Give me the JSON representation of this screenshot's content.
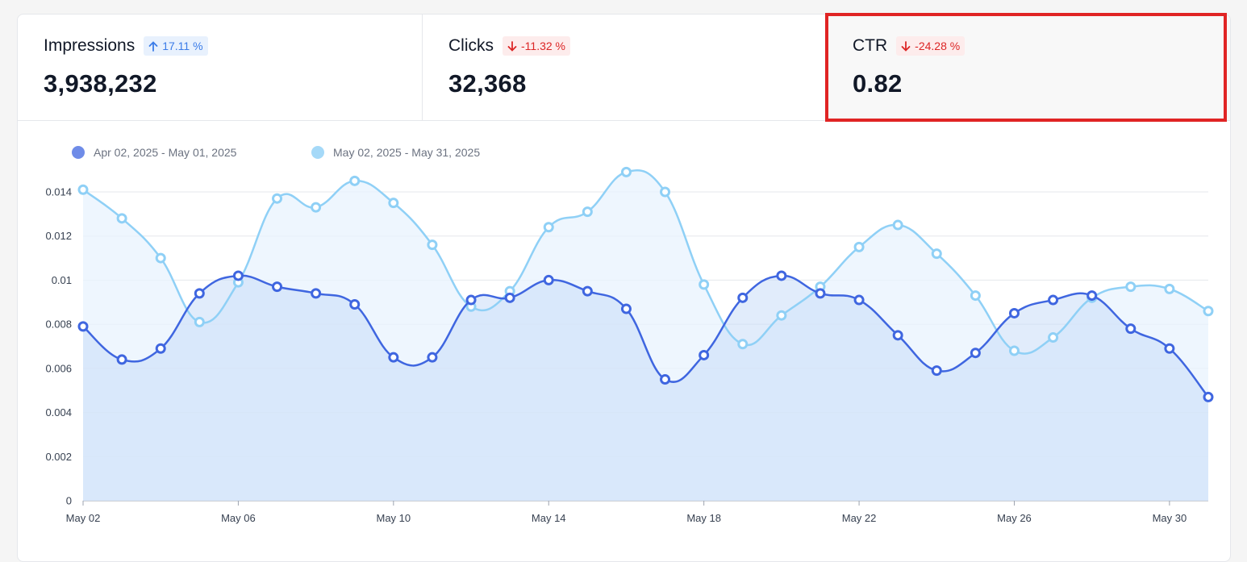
{
  "metrics": [
    {
      "title": "Impressions",
      "change": "17.11 %",
      "direction": "up",
      "value": "3,938,232"
    },
    {
      "title": "Clicks",
      "change": "-11.32 %",
      "direction": "down",
      "value": "32,368"
    },
    {
      "title": "CTR",
      "change": "-24.28 %",
      "direction": "down",
      "value": "0.82"
    }
  ],
  "colors": {
    "previous": "#3f66e0",
    "previous_fill": "#c9dcf8",
    "current": "#8fd0f6",
    "current_fill": "#e8f3fd",
    "grid": "#e5e7eb",
    "highlight": "#e02424"
  },
  "chart_data": {
    "type": "area",
    "legend": [
      "Apr 02, 2025 - May 01, 2025",
      "May 02, 2025 - May 31, 2025"
    ],
    "legend_position": "top-left",
    "grid": true,
    "x": [
      "May 02",
      "May 03",
      "May 04",
      "May 05",
      "May 06",
      "May 07",
      "May 08",
      "May 09",
      "May 10",
      "May 11",
      "May 12",
      "May 13",
      "May 14",
      "May 15",
      "May 16",
      "May 17",
      "May 18",
      "May 19",
      "May 20",
      "May 21",
      "May 22",
      "May 23",
      "May 24",
      "May 25",
      "May 26",
      "May 27",
      "May 28",
      "May 29",
      "May 30",
      "May 31"
    ],
    "x_ticks": [
      "May 02",
      "May 06",
      "May 10",
      "May 14",
      "May 18",
      "May 22",
      "May 26",
      "May 30"
    ],
    "y_ticks": [
      "0",
      "0.002",
      "0.004",
      "0.006",
      "0.008",
      "0.01",
      "0.012",
      "0.014"
    ],
    "ylim": [
      0,
      0.014
    ],
    "series": [
      {
        "name": "Apr 02, 2025 - May 01, 2025",
        "values": [
          0.0079,
          0.0064,
          0.0069,
          0.0094,
          0.0102,
          0.0097,
          0.0094,
          0.0089,
          0.0065,
          0.0065,
          0.0091,
          0.0092,
          0.01,
          0.0095,
          0.0087,
          0.0055,
          0.0066,
          0.0092,
          0.0102,
          0.0094,
          0.0091,
          0.0075,
          0.0059,
          0.0067,
          0.0085,
          0.0091,
          0.0093,
          0.0078,
          0.0069,
          0.0047
        ]
      },
      {
        "name": "May 02, 2025 - May 31, 2025",
        "values": [
          0.0141,
          0.0128,
          0.011,
          0.0081,
          0.0099,
          0.0137,
          0.0133,
          0.0145,
          0.0135,
          0.0116,
          0.0088,
          0.0095,
          0.0124,
          0.0131,
          0.0149,
          0.014,
          0.0098,
          0.0071,
          0.0084,
          0.0097,
          0.0115,
          0.0125,
          0.0112,
          0.0093,
          0.0068,
          0.0074,
          0.0092,
          0.0097,
          0.0096,
          0.0086
        ]
      }
    ]
  }
}
